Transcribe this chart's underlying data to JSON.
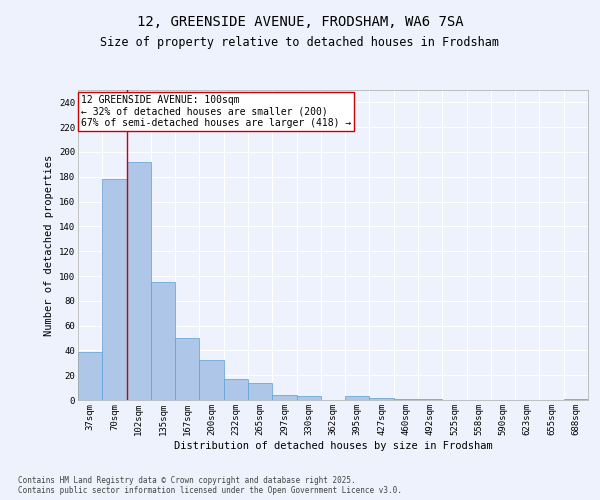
{
  "title_line1": "12, GREENSIDE AVENUE, FRODSHAM, WA6 7SA",
  "title_line2": "Size of property relative to detached houses in Frodsham",
  "xlabel": "Distribution of detached houses by size in Frodsham",
  "ylabel": "Number of detached properties",
  "categories": [
    "37sqm",
    "70sqm",
    "102sqm",
    "135sqm",
    "167sqm",
    "200sqm",
    "232sqm",
    "265sqm",
    "297sqm",
    "330sqm",
    "362sqm",
    "395sqm",
    "427sqm",
    "460sqm",
    "492sqm",
    "525sqm",
    "558sqm",
    "590sqm",
    "623sqm",
    "655sqm",
    "688sqm"
  ],
  "values": [
    39,
    178,
    192,
    95,
    50,
    32,
    17,
    14,
    4,
    3,
    0,
    3,
    2,
    1,
    1,
    0,
    0,
    0,
    0,
    0,
    1
  ],
  "bar_color": "#aec6e8",
  "bar_edge_color": "#5a9fd4",
  "highlight_bar_index": 2,
  "highlight_line_color": "#cc0000",
  "annotation_box_text": "12 GREENSIDE AVENUE: 100sqm\n← 32% of detached houses are smaller (200)\n67% of semi-detached houses are larger (418) →",
  "ylim": [
    0,
    250
  ],
  "yticks": [
    0,
    20,
    40,
    60,
    80,
    100,
    120,
    140,
    160,
    180,
    200,
    220,
    240
  ],
  "background_color": "#eef2fc",
  "grid_color": "#ffffff",
  "footer_text": "Contains HM Land Registry data © Crown copyright and database right 2025.\nContains public sector information licensed under the Open Government Licence v3.0.",
  "title_fontsize": 10,
  "subtitle_fontsize": 8.5,
  "axis_label_fontsize": 7.5,
  "tick_fontsize": 6.5,
  "annotation_fontsize": 7
}
